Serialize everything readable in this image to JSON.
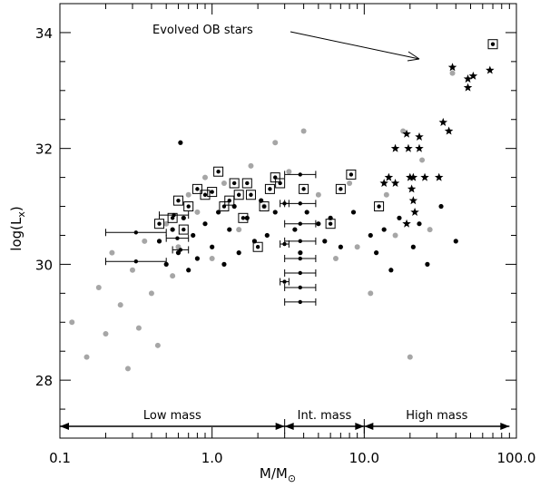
{
  "chart_data": {
    "type": "scatter",
    "title": "",
    "xlabel": "M/M",
    "xlabel_symbol": "⊙",
    "ylabel": "log(L",
    "ylabel_sub": "x",
    "ylabel_close": ")",
    "xscale": "log",
    "xlim": [
      0.1,
      100
    ],
    "ylim": [
      27,
      34.5
    ],
    "x_ticks": [
      0.1,
      1.0,
      10.0,
      100.0
    ],
    "x_tick_labels": [
      "0.1",
      "1.0",
      "10.0",
      "100.0"
    ],
    "y_ticks": [
      28,
      30,
      32,
      34
    ],
    "y_tick_labels": [
      "28",
      "30",
      "32",
      "34"
    ],
    "grid": false,
    "annotation": {
      "text": "Evolved OB stars",
      "arrow_to": [
        25,
        33.5
      ]
    },
    "mass_regions": [
      {
        "label": "Low mass",
        "from": 0.1,
        "to": 3.0
      },
      {
        "label": "Int. mass",
        "from": 3.0,
        "to": 10.0
      },
      {
        "label": "High mass",
        "from": 10.0,
        "to": 90.0
      }
    ],
    "series": [
      {
        "kind": "gray-dots",
        "color": "#a6a6a6",
        "points": [
          [
            0.12,
            29.0
          ],
          [
            0.15,
            28.4
          ],
          [
            0.18,
            29.6
          ],
          [
            0.2,
            28.8
          ],
          [
            0.22,
            30.2
          ],
          [
            0.25,
            29.3
          ],
          [
            0.28,
            28.2
          ],
          [
            0.3,
            29.9
          ],
          [
            0.33,
            28.9
          ],
          [
            0.36,
            30.4
          ],
          [
            0.4,
            29.5
          ],
          [
            0.44,
            28.6
          ],
          [
            0.5,
            30.7
          ],
          [
            0.55,
            29.8
          ],
          [
            0.6,
            30.3
          ],
          [
            0.7,
            31.2
          ],
          [
            0.8,
            30.9
          ],
          [
            0.9,
            31.5
          ],
          [
            1.0,
            30.1
          ],
          [
            1.2,
            31.4
          ],
          [
            1.5,
            30.6
          ],
          [
            1.8,
            31.7
          ],
          [
            2.2,
            31.0
          ],
          [
            2.6,
            32.1
          ],
          [
            3.2,
            31.6
          ],
          [
            4.0,
            32.3
          ],
          [
            5.0,
            31.2
          ],
          [
            6.5,
            30.1
          ],
          [
            8.0,
            31.4
          ],
          [
            9.0,
            30.3
          ],
          [
            11.0,
            29.5
          ],
          [
            14.0,
            31.2
          ],
          [
            16.0,
            30.5
          ],
          [
            18.0,
            32.3
          ],
          [
            20.0,
            28.4
          ],
          [
            24.0,
            31.8
          ],
          [
            27.0,
            30.6
          ],
          [
            38.0,
            33.3
          ]
        ]
      },
      {
        "kind": "black-dots",
        "color": "#000000",
        "points": [
          [
            0.45,
            30.4
          ],
          [
            0.5,
            30.0
          ],
          [
            0.55,
            30.6
          ],
          [
            0.6,
            30.2
          ],
          [
            0.65,
            30.8
          ],
          [
            0.7,
            29.9
          ],
          [
            0.75,
            30.5
          ],
          [
            0.8,
            30.1
          ],
          [
            0.9,
            30.7
          ],
          [
            1.0,
            30.3
          ],
          [
            1.1,
            30.9
          ],
          [
            1.2,
            30.0
          ],
          [
            1.3,
            30.6
          ],
          [
            1.4,
            31.0
          ],
          [
            1.5,
            30.2
          ],
          [
            1.7,
            30.8
          ],
          [
            1.9,
            30.4
          ],
          [
            2.1,
            31.1
          ],
          [
            2.3,
            30.5
          ],
          [
            2.6,
            30.9
          ],
          [
            0.62,
            32.1
          ],
          [
            3.5,
            30.6
          ],
          [
            3.8,
            30.2
          ],
          [
            4.2,
            30.9
          ],
          [
            5.0,
            30.7
          ],
          [
            5.5,
            30.4
          ],
          [
            6.0,
            30.8
          ],
          [
            7.0,
            30.3
          ],
          [
            8.5,
            30.9
          ],
          [
            11.0,
            30.5
          ],
          [
            12.0,
            30.2
          ],
          [
            13.5,
            30.6
          ],
          [
            15.0,
            29.9
          ],
          [
            17.0,
            30.8
          ],
          [
            21.0,
            30.3
          ],
          [
            23.0,
            30.7
          ],
          [
            26.0,
            30.0
          ],
          [
            32.0,
            31.0
          ],
          [
            40.0,
            30.4
          ]
        ]
      },
      {
        "kind": "boxed-dots",
        "color": "#000000",
        "points": [
          [
            0.45,
            30.7
          ],
          [
            0.55,
            30.8
          ],
          [
            0.6,
            31.1
          ],
          [
            0.65,
            30.6
          ],
          [
            0.7,
            31.0
          ],
          [
            0.8,
            31.3
          ],
          [
            0.9,
            31.2
          ],
          [
            1.0,
            31.25
          ],
          [
            1.1,
            31.6
          ],
          [
            1.2,
            31.0
          ],
          [
            1.3,
            31.1
          ],
          [
            1.4,
            31.4
          ],
          [
            1.5,
            31.2
          ],
          [
            1.6,
            30.8
          ],
          [
            1.7,
            31.4
          ],
          [
            1.8,
            31.2
          ],
          [
            2.0,
            30.3
          ],
          [
            2.2,
            31.0
          ],
          [
            2.4,
            31.3
          ],
          [
            2.6,
            31.5
          ],
          [
            2.8,
            31.4
          ],
          [
            4.0,
            31.3
          ],
          [
            6.0,
            30.7
          ],
          [
            7.0,
            31.3
          ],
          [
            8.2,
            31.55
          ],
          [
            12.5,
            31.0
          ],
          [
            70.0,
            33.8
          ]
        ]
      },
      {
        "kind": "stars",
        "color": "#000000",
        "points": [
          [
            13.5,
            31.4
          ],
          [
            14.5,
            31.5
          ],
          [
            16.0,
            31.4
          ],
          [
            16.0,
            32.0
          ],
          [
            19.0,
            32.25
          ],
          [
            19.5,
            32.0
          ],
          [
            20.0,
            31.5
          ],
          [
            20.5,
            31.3
          ],
          [
            21.0,
            31.1
          ],
          [
            21.5,
            30.9
          ],
          [
            19.0,
            30.7
          ],
          [
            21.0,
            31.5
          ],
          [
            23.0,
            32.2
          ],
          [
            23.0,
            32.0
          ],
          [
            25.0,
            31.5
          ],
          [
            31.0,
            31.5
          ],
          [
            33.0,
            32.45
          ],
          [
            36.0,
            32.3
          ],
          [
            38.0,
            33.4
          ],
          [
            48.0,
            33.05
          ],
          [
            48.0,
            33.2
          ],
          [
            52.0,
            33.25
          ],
          [
            67.0,
            33.35
          ]
        ]
      },
      {
        "kind": "upper-limits",
        "color": "#000000",
        "points": [
          [
            0.2,
            0.5,
            30.55
          ],
          [
            0.2,
            0.5,
            30.05
          ],
          [
            0.45,
            0.7,
            30.85
          ],
          [
            0.5,
            0.7,
            30.45
          ],
          [
            0.55,
            0.7,
            30.25
          ],
          [
            3.0,
            4.8,
            31.55
          ],
          [
            3.0,
            4.8,
            31.05
          ],
          [
            3.0,
            4.8,
            30.7
          ],
          [
            3.0,
            4.8,
            30.4
          ],
          [
            3.0,
            4.8,
            30.1
          ],
          [
            3.0,
            4.8,
            29.85
          ],
          [
            3.0,
            4.8,
            29.6
          ],
          [
            3.0,
            4.8,
            29.35
          ],
          [
            2.8,
            3.2,
            31.05
          ],
          [
            2.8,
            3.2,
            30.35
          ],
          [
            2.8,
            3.2,
            29.7
          ]
        ]
      }
    ]
  }
}
